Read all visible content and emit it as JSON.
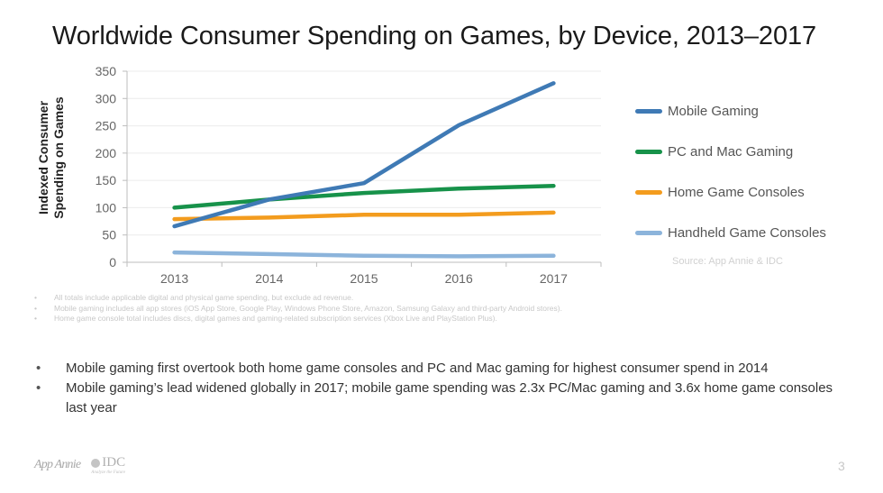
{
  "slide": {
    "title": "Worldwide Consumer Spending on Games, by Device, 2013–2017",
    "page_number": "3",
    "logos": {
      "app_annie": "App Annie",
      "idc": "IDC",
      "idc_tagline": "Analyze the Future"
    }
  },
  "chart_data": {
    "type": "line",
    "title": "Worldwide Consumer Spending on Games, by Device, 2013–2017",
    "xlabel": "",
    "ylabel": "Indexed Consumer Spending on Games",
    "ylabel_lines": [
      "Indexed Consumer",
      "Spending on Games"
    ],
    "x": [
      "2013",
      "2014",
      "2015",
      "2016",
      "2017"
    ],
    "ylim": [
      0,
      350
    ],
    "yticks": [
      0,
      50,
      100,
      150,
      200,
      250,
      300,
      350
    ],
    "ytick_labels": [
      "0",
      "50",
      "100",
      "150",
      "200",
      "250",
      "300",
      "350"
    ],
    "grid": true,
    "legend_position": "right",
    "series": [
      {
        "name": "Mobile Gaming",
        "color": "#3f7ab5",
        "values": [
          66,
          115,
          145,
          251,
          328
        ]
      },
      {
        "name": "PC and Mac Gaming",
        "color": "#17924a",
        "values": [
          100,
          115,
          127,
          135,
          140
        ]
      },
      {
        "name": "Home Game Consoles",
        "color": "#f39c1e",
        "values": [
          79,
          82,
          87,
          87,
          91
        ]
      },
      {
        "name": "Handheld Game Consoles",
        "color": "#8cb4db",
        "values": [
          18,
          15,
          12,
          11,
          12
        ]
      }
    ],
    "source": "Source: App Annie & IDC"
  },
  "footnotes": [
    "All totals include applicable digital and physical game spending, but exclude ad revenue.",
    "Mobile gaming includes all app stores (iOS App Store, Google Play, Windows Phone Store, Amazon, Samsung Galaxy and third-party Android stores).",
    "Home game console total includes discs, digital games and gaming-related subscription services (Xbox Live and PlayStation Plus)."
  ],
  "bullets": [
    "Mobile gaming first overtook both home game consoles and PC and Mac gaming for highest consumer spend in 2014",
    "Mobile gaming’s lead widened globally in 2017; mobile game spending was 2.3x PC/Mac gaming and 3.6x home game consoles last year"
  ],
  "bullet_glyph": "•"
}
